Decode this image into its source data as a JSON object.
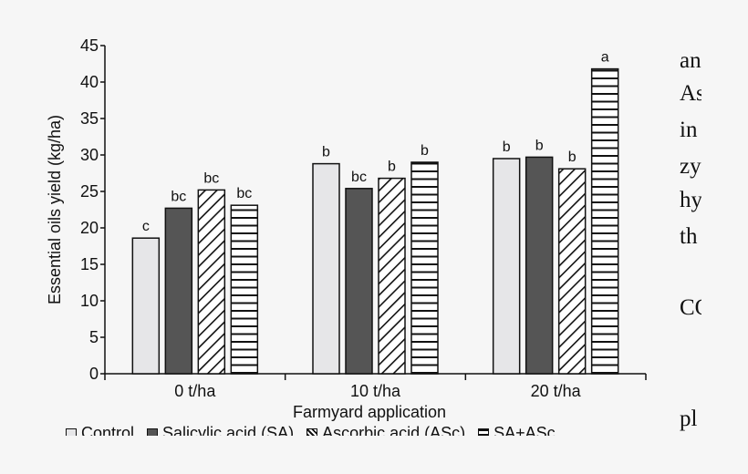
{
  "chart_data": {
    "type": "bar",
    "xlabel": "Farmyard application",
    "ylabel": "Essential oils yield (kg/ha)",
    "ylim": [
      0,
      45
    ],
    "yticks": [
      0,
      5,
      10,
      15,
      20,
      25,
      30,
      35,
      40,
      45
    ],
    "categories": [
      "0 t/ha",
      "10 t/ha",
      "20 t/ha"
    ],
    "series": [
      {
        "name": "Control",
        "values": [
          18.6,
          28.8,
          29.5
        ],
        "labels": [
          "c",
          "b",
          "b"
        ],
        "fill": "#e6e6e8",
        "pattern": "solid"
      },
      {
        "name": "Salicylic acid (SA)",
        "values": [
          22.7,
          25.4,
          29.7
        ],
        "labels": [
          "bc",
          "bc",
          "b"
        ],
        "fill": "#555555",
        "pattern": "solid"
      },
      {
        "name": "Ascorbic acid (ASc)",
        "values": [
          25.2,
          26.8,
          28.1
        ],
        "labels": [
          "bc",
          "b",
          "b"
        ],
        "fill": "#ffffff",
        "pattern": "diagonal"
      },
      {
        "name": "SA+ASc",
        "values": [
          23.1,
          29.0,
          41.8
        ],
        "labels": [
          "bc",
          "b",
          "a"
        ],
        "fill": "#ffffff",
        "pattern": "horizontal"
      }
    ],
    "grid": false,
    "legend_position": "bottom"
  },
  "side_text": [
    "an",
    "As",
    "in",
    "zy",
    "hy",
    "th",
    "CO",
    "pl"
  ]
}
